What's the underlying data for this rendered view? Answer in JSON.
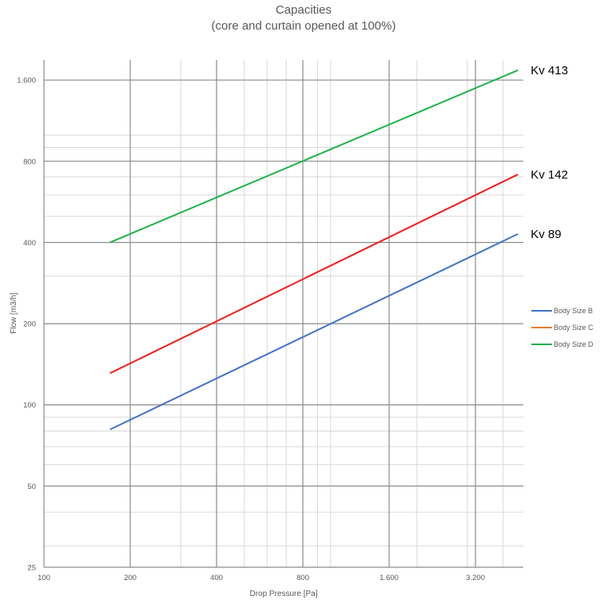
{
  "chart_data": {
    "type": "line",
    "title": "Capacities",
    "subtitle": "(core and curtain opened at 100%)",
    "xlabel": "Drop Pressure [Pa]",
    "ylabel": "Flow [m3/h]",
    "xscale": "log",
    "yscale": "log",
    "xlim": [
      100,
      4700
    ],
    "ylim": [
      25,
      1900
    ],
    "x_ticks": [
      100,
      200,
      400,
      800,
      1600,
      3200
    ],
    "x_tick_labels": [
      "100",
      "200",
      "400",
      "800",
      "1.600",
      "3.200"
    ],
    "y_ticks": [
      25,
      50,
      100,
      200,
      400,
      800,
      1600
    ],
    "y_tick_labels": [
      "25",
      "50",
      "100",
      "200",
      "400",
      "800",
      "1.600"
    ],
    "grid": true,
    "legend_position": "right",
    "series": [
      {
        "name": "Body Size B",
        "color": "#4472C4",
        "x": [
          170,
          4500
        ],
        "y": [
          81,
          430
        ]
      },
      {
        "name": "Body Size C",
        "color": "#ED7D31",
        "x": [
          170,
          4500
        ],
        "y": [
          131,
          715
        ]
      },
      {
        "name": "Body Size D",
        "color": "#21B24B",
        "x": [
          170,
          4500
        ],
        "y": [
          400,
          1740
        ]
      }
    ],
    "overlay_line": {
      "color": "#E8262C",
      "x": [
        170,
        4500
      ],
      "y": [
        131,
        715
      ]
    },
    "annotations": [
      {
        "text": "Kv 413",
        "x": 4500,
        "y": 1740
      },
      {
        "text": "Kv 142",
        "x": 4500,
        "y": 715
      },
      {
        "text": "Kv 89",
        "x": 4500,
        "y": 430
      }
    ]
  }
}
